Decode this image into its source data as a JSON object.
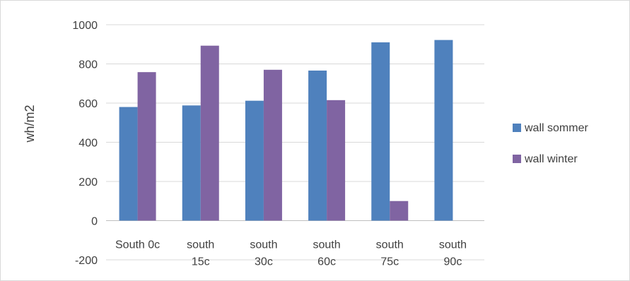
{
  "chart_data": {
    "type": "bar",
    "title": "",
    "xlabel": "",
    "ylabel": "wh/m2",
    "ylim": [
      -200,
      1000
    ],
    "yticks": [
      -200,
      0,
      200,
      400,
      600,
      800,
      1000
    ],
    "grid": true,
    "legend_position": "right",
    "categories": [
      [
        "South 0c"
      ],
      [
        "south",
        "15c"
      ],
      [
        "south",
        "30c"
      ],
      [
        "south",
        "60c"
      ],
      [
        "south",
        "75c"
      ],
      [
        "south",
        "90c"
      ]
    ],
    "series": [
      {
        "name": "wall sommer",
        "color": "#4f81bd",
        "values": [
          580,
          588,
          612,
          766,
          910,
          922
        ]
      },
      {
        "name": "wall winter",
        "color": "#8064a2",
        "values": [
          758,
          893,
          770,
          615,
          100,
          0
        ]
      }
    ]
  }
}
